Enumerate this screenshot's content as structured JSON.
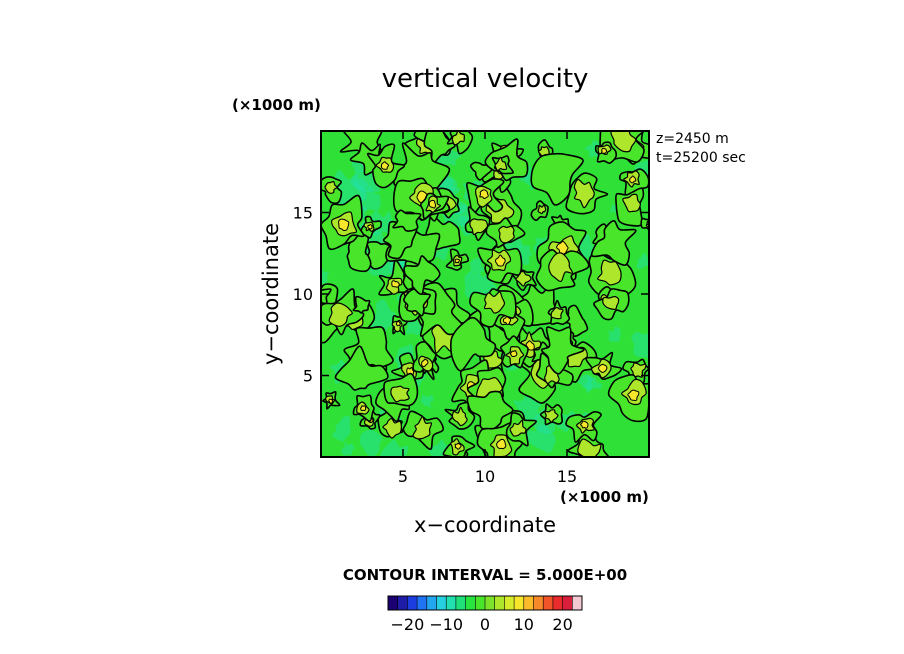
{
  "chart_data": {
    "type": "heatmap",
    "title": "vertical velocity",
    "xlabel": "x−coordinate",
    "ylabel": "y−coordinate",
    "x_unit": "(×1000 m)",
    "y_unit": "(×1000 m)",
    "xlim": [
      0,
      20
    ],
    "ylim": [
      0,
      20
    ],
    "x_ticks": [
      5,
      10,
      15
    ],
    "y_ticks": [
      5,
      10,
      15
    ],
    "x_tick_labels": [
      "5",
      "10",
      "15"
    ],
    "y_tick_labels": [
      "5",
      "10",
      "15"
    ],
    "annotations": [
      "z=2450 m",
      "t=25200 sec"
    ],
    "contour_interval_text": "CONTOUR INTERVAL = 5.000E+00",
    "contour_interval": 5,
    "colorbar": {
      "range": [
        -25,
        25
      ],
      "tick_values": [
        -20,
        -10,
        0,
        10,
        20
      ],
      "tick_labels": [
        "−20",
        "−10",
        "0",
        "10",
        "20"
      ],
      "colors": [
        "#1a0070",
        "#1f1ca8",
        "#1c3ee0",
        "#1e74f5",
        "#23a6f0",
        "#27d0e0",
        "#22e0b0",
        "#20e07a",
        "#29e43f",
        "#49e52b",
        "#7de22a",
        "#aee62b",
        "#d8ec2c",
        "#f6e62c",
        "#fbbb2a",
        "#f68a2b",
        "#f2542a",
        "#e92b2b",
        "#d81f3c",
        "#f2c9d2"
      ]
    }
  }
}
